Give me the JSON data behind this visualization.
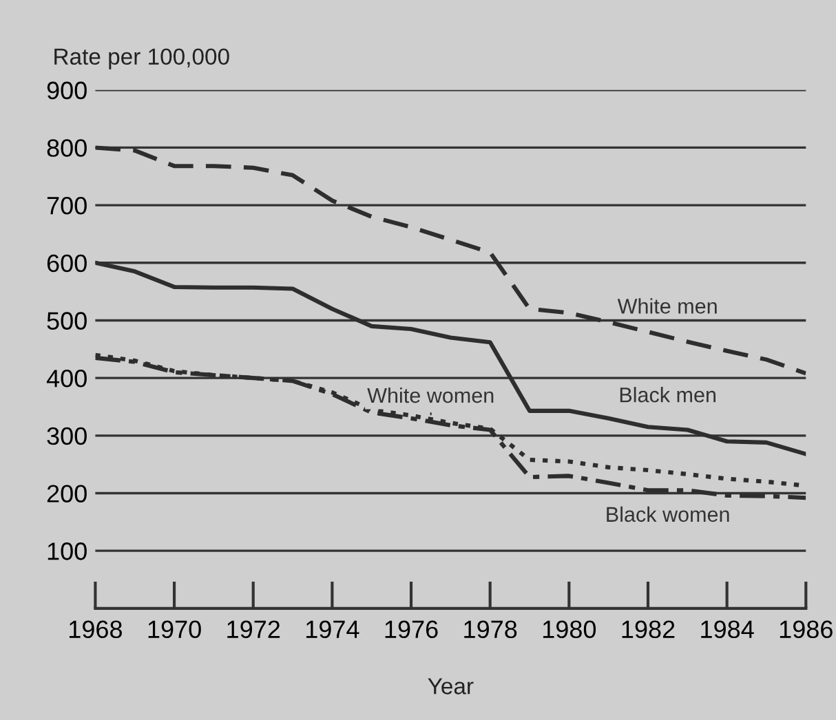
{
  "chart_data": {
    "type": "line",
    "ylabel": "Rate per 100,000",
    "xlabel": "Year",
    "x": [
      1968,
      1969,
      1970,
      1971,
      1972,
      1973,
      1974,
      1975,
      1976,
      1977,
      1978,
      1979,
      1980,
      1981,
      1982,
      1983,
      1984,
      1985,
      1986
    ],
    "series": [
      {
        "name": "White men",
        "color": "#2e2e2e",
        "line_style": "dashed",
        "values": [
          800,
          795,
          768,
          768,
          765,
          752,
          708,
          680,
          662,
          640,
          618,
          520,
          513,
          497,
          480,
          463,
          447,
          432,
          408
        ]
      },
      {
        "name": "Black men",
        "color": "#2e2e2e",
        "line_style": "solid",
        "values": [
          600,
          585,
          558,
          557,
          557,
          555,
          520,
          490,
          485,
          470,
          462,
          343,
          343,
          330,
          315,
          310,
          290,
          288,
          268
        ]
      },
      {
        "name": "White women",
        "color": "#2e2e2e",
        "line_style": "dotted",
        "values": [
          440,
          430,
          412,
          405,
          400,
          395,
          375,
          345,
          335,
          322,
          312,
          258,
          255,
          245,
          240,
          233,
          225,
          220,
          213
        ]
      },
      {
        "name": "Black women",
        "color": "#2e2e2e",
        "line_style": "dashdot",
        "values": [
          435,
          428,
          410,
          405,
          400,
          395,
          372,
          340,
          330,
          318,
          310,
          228,
          230,
          218,
          205,
          205,
          196,
          195,
          192
        ]
      }
    ],
    "xlim": [
      1968,
      1986
    ],
    "xticks": [
      1968,
      1970,
      1972,
      1974,
      1976,
      1978,
      1980,
      1982,
      1984,
      1986
    ],
    "ylim": [
      0,
      900
    ],
    "yticks": [
      100,
      200,
      300,
      400,
      500,
      600,
      700,
      800,
      900
    ],
    "grid": "y",
    "legend": false
  }
}
